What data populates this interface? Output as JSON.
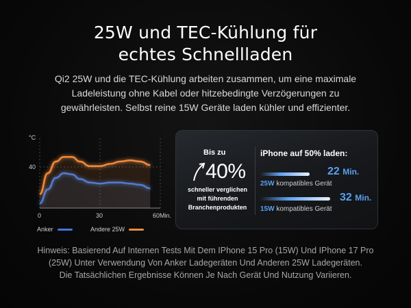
{
  "headline": {
    "line1": "25W und TEC-Kühlung für",
    "line2": "echtes Schnellladen"
  },
  "subtext": {
    "line1": "Qi2 25W und die TEC-Kühlung arbeiten zusammen, um eine maximale",
    "line2": "Ladeleistung ohne Kabel oder hitzebedingte Verzögerungen zu",
    "line3": "gewährleisten. Selbst reine 15W Geräte laden kühler und effizienter."
  },
  "chart_data": {
    "type": "line",
    "ylabel": "°C",
    "y_tick": "40",
    "x_ticks": [
      "0",
      "30",
      "60Min."
    ],
    "xlim": [
      0,
      60
    ],
    "ylim": [
      0,
      60
    ],
    "series": [
      {
        "name": "Anker",
        "color": "#3f78e0",
        "x": [
          0,
          4,
          8,
          12,
          16,
          20,
          25,
          30,
          35,
          40,
          45,
          50,
          55
        ],
        "y": [
          4,
          16,
          26,
          30,
          29,
          25,
          22,
          21,
          22,
          22,
          21,
          20,
          17
        ]
      },
      {
        "name": "Andere 25W",
        "color": "#f08a3c",
        "x": [
          0,
          4,
          8,
          12,
          16,
          20,
          25,
          30,
          35,
          40,
          45,
          50,
          55
        ],
        "y": [
          12,
          30,
          40,
          44,
          44,
          40,
          36,
          36,
          38,
          40,
          41,
          40,
          37
        ]
      }
    ]
  },
  "panel": {
    "bis_zu": "Bis zu",
    "percent": "40%",
    "compare_line1": "schneller verglichen",
    "compare_line2": "mit führenden",
    "compare_line3": "Branchenprodukten",
    "title": "iPhone auf 50% laden:",
    "rows": [
      {
        "time": "22",
        "unit": "Min.",
        "watt": "25W",
        "label": "kompatibles Gerät",
        "fill": 0.6
      },
      {
        "time": "32",
        "unit": "Min.",
        "watt": "15W",
        "label": "kompatibles Gerät",
        "fill": 0.85
      }
    ]
  },
  "footnote": {
    "line1": "Hinweis: Basierend Auf Internen Tests Mit Dem IPhone 15 Pro (15W) Und IPhone 17 Pro",
    "line2": "(25W) Unter Verwendung Von Anker Ladegeräten Und Anderen 25W Ladegeräten.",
    "line3": "Die Tatsächlichen Ergebnisse Können Je Nach Gerät Und Nutzung Variieren."
  }
}
